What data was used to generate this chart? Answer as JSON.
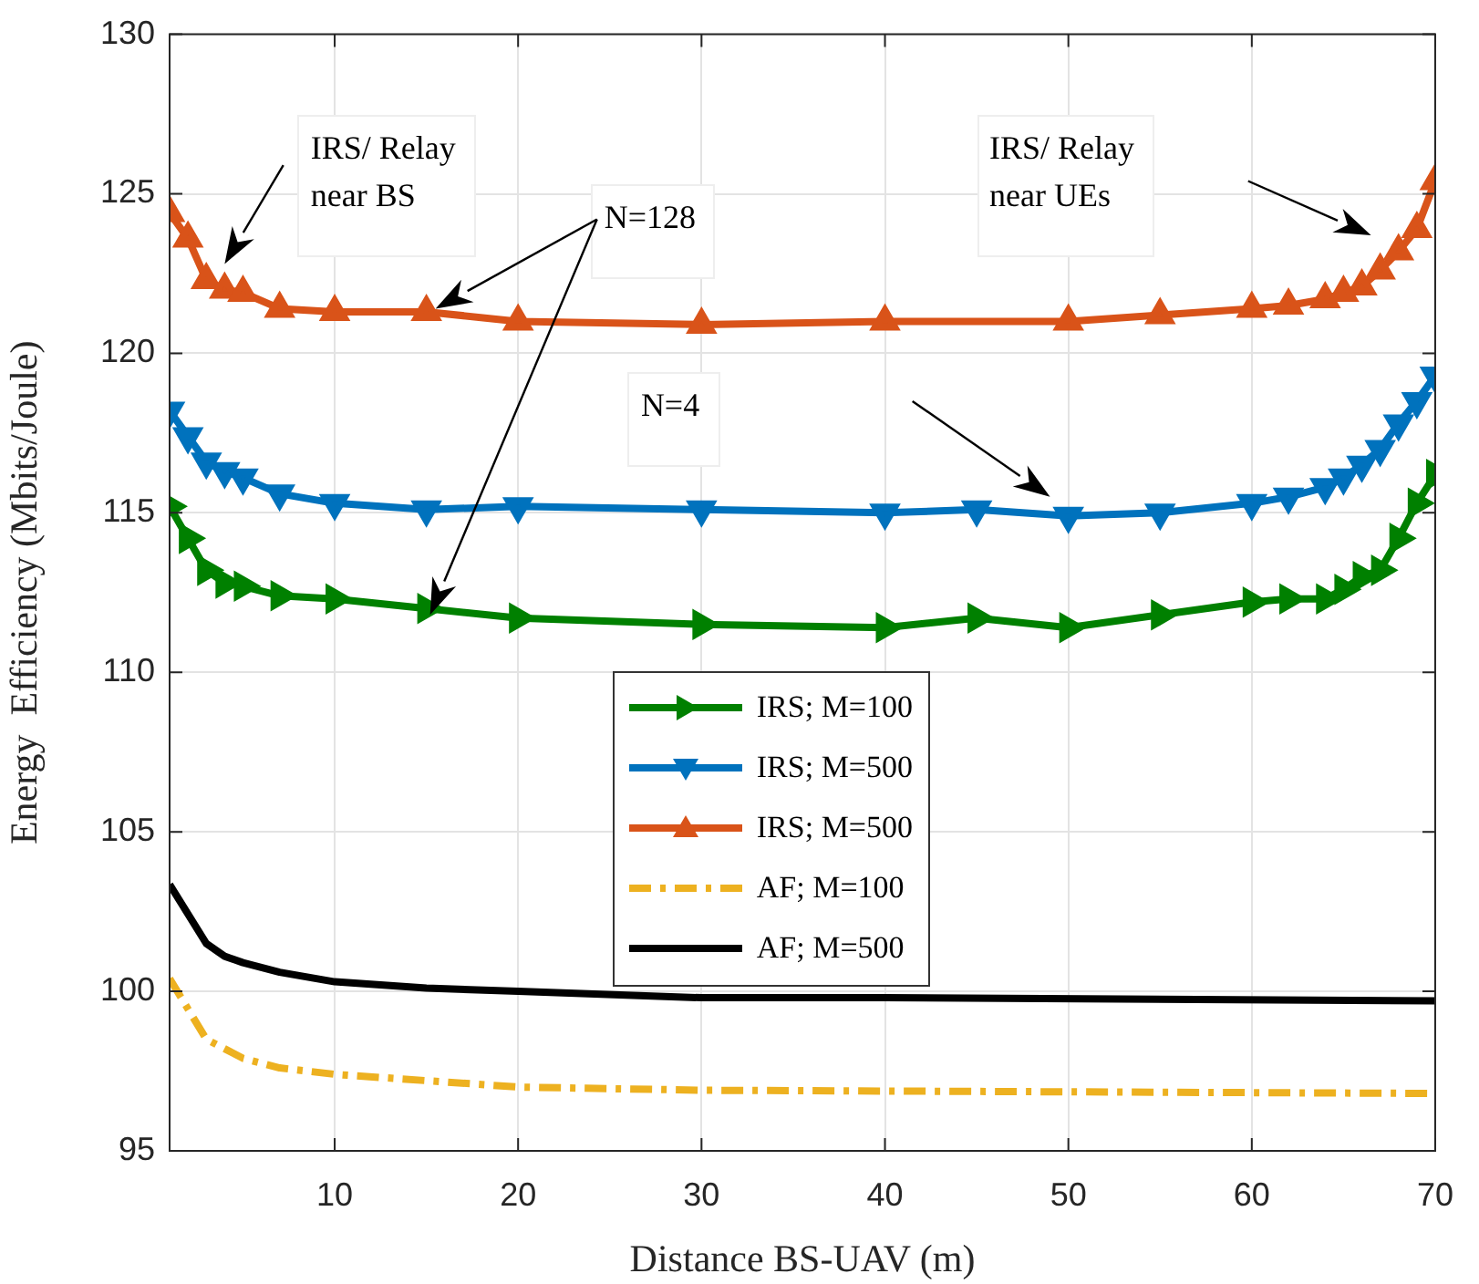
{
  "chart_data": {
    "type": "line",
    "xlabel": "Distance BS-UAV (m)",
    "ylabel": "Energy  Efficiency (Mbits/Joule)",
    "xlim": [
      1,
      70
    ],
    "xticks": [
      10,
      20,
      30,
      40,
      50,
      60,
      70
    ],
    "ylim": [
      95,
      130
    ],
    "yticks": [
      95,
      100,
      105,
      110,
      115,
      120,
      125,
      130
    ],
    "grid": true,
    "legend": "center",
    "line_style": "solid",
    "annotations": [
      "IRS/ Relay\nnear BS",
      "N=128",
      "IRS/ Relay\nnear UEs",
      "N=4"
    ],
    "series": [
      {
        "name": "IRS; M=100",
        "color": "#008000",
        "marker": "triangle",
        "x": [
          1,
          2,
          3,
          4,
          5,
          7,
          10,
          15,
          20,
          30,
          40,
          45,
          50,
          55,
          60,
          62,
          64,
          65,
          66,
          67,
          68,
          69,
          70
        ],
        "values": [
          115.2,
          114.2,
          113.2,
          112.8,
          112.7,
          112.4,
          112.3,
          112.0,
          111.7,
          111.5,
          111.4,
          111.7,
          111.4,
          111.8,
          112.2,
          112.3,
          112.3,
          112.6,
          113.0,
          113.2,
          114.2,
          115.3,
          116.2
        ]
      },
      {
        "name": "IRS; M=500",
        "color": "#0072bd",
        "marker": "triangle",
        "x": [
          1,
          2,
          3,
          4,
          5,
          7,
          10,
          15,
          20,
          30,
          40,
          45,
          50,
          55,
          60,
          62,
          64,
          65,
          66,
          67,
          68,
          69,
          70
        ],
        "values": [
          118.2,
          117.4,
          116.6,
          116.3,
          116.1,
          115.6,
          115.3,
          115.1,
          115.2,
          115.1,
          115.0,
          115.1,
          114.9,
          115.0,
          115.3,
          115.5,
          115.8,
          116.1,
          116.5,
          117.0,
          117.8,
          118.5,
          119.3
        ]
      },
      {
        "name": "IRS; M=500",
        "color": "#d95319",
        "marker": "triangle",
        "x": [
          1,
          2,
          3,
          4,
          5,
          7,
          10,
          15,
          20,
          30,
          40,
          50,
          55,
          60,
          62,
          64,
          65,
          66,
          67,
          68,
          69,
          70
        ],
        "values": [
          124.4,
          123.6,
          122.3,
          122.0,
          121.9,
          121.4,
          121.3,
          121.3,
          121.0,
          120.9,
          121.0,
          121.0,
          121.2,
          121.4,
          121.5,
          121.7,
          121.9,
          122.1,
          122.6,
          123.2,
          123.9,
          125.4
        ]
      },
      {
        "name": "AF; M=100",
        "color": "#edb120",
        "marker": "none",
        "line_style": "dashed",
        "x": [
          1,
          3,
          5,
          7,
          10,
          15,
          20,
          30,
          50,
          70
        ],
        "values": [
          100.4,
          98.5,
          97.9,
          97.6,
          97.4,
          97.2,
          97.0,
          96.9,
          96.85,
          96.8
        ]
      },
      {
        "name": "AF; M=500",
        "color": "#000000",
        "marker": "none",
        "x": [
          1,
          3,
          4,
          5,
          7,
          10,
          15,
          20,
          30,
          40,
          70
        ],
        "values": [
          103.35,
          101.5,
          101.1,
          100.9,
          100.6,
          100.3,
          100.1,
          100.0,
          99.8,
          99.8,
          99.7
        ]
      }
    ]
  }
}
